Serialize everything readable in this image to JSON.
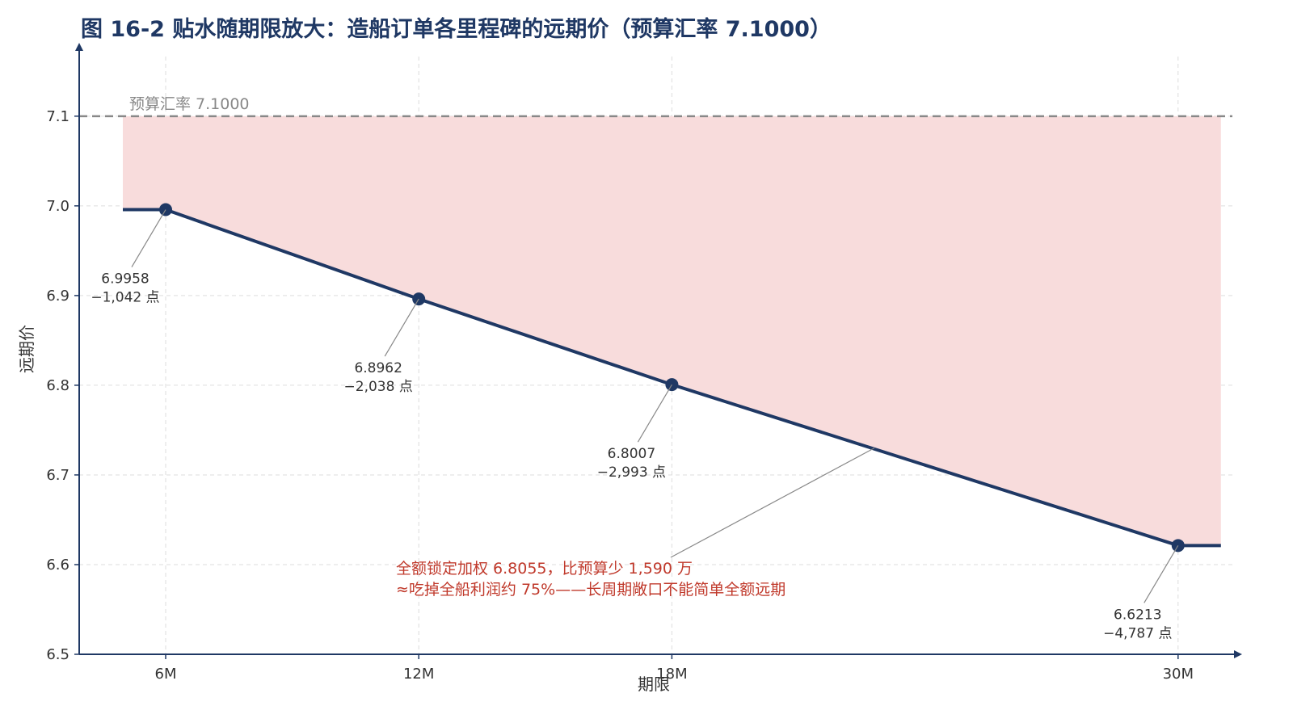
{
  "chart_data": {
    "type": "line",
    "title": "图 16-2 贴水随期限放大：造船订单各里程碑的远期价（预算汇率 7.1000）",
    "xlabel": "期限",
    "ylabel": "远期价",
    "x_scale": "months",
    "categories": [
      "6M",
      "12M",
      "18M",
      "30M"
    ],
    "x_months": [
      6,
      12,
      18,
      30
    ],
    "series": [
      {
        "values": [
          6.9958,
          6.8962,
          6.8007,
          6.6213
        ],
        "point_labels": [
          [
            "6.9958",
            "−1,042 点"
          ],
          [
            "6.8962",
            "−2,038 点"
          ],
          [
            "6.8007",
            "−2,993 点"
          ],
          [
            "6.6213",
            "−4,787 点"
          ]
        ]
      }
    ],
    "ylim": [
      6.5,
      7.18
    ],
    "yticks": [
      "6.5",
      "6.6",
      "6.7",
      "6.8",
      "6.9",
      "7.0",
      "7.1"
    ],
    "grid": true,
    "reference_line": {
      "value": 7.1,
      "label": "预算汇率 7.1000"
    },
    "annotation": {
      "lines": [
        "全额锁定加权 6.8055，比预算少 1,590 万",
        "≈吃掉全船利润约 75%——长周期敞口不能简单全额远期"
      ]
    },
    "colors": {
      "line": "#1f3864",
      "fill": "#f8dcdc",
      "reference": "#888888",
      "annotation": "#c0392b",
      "title": "#1f3864",
      "grid": "#dddddd"
    }
  }
}
